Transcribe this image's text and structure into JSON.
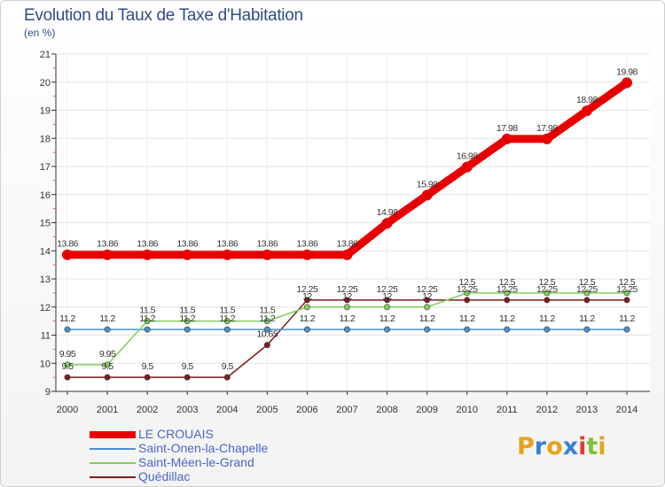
{
  "chart_data": {
    "type": "line",
    "title": "Evolution du Taux de Taxe d'Habitation",
    "subtitle": "(en %)",
    "x": [
      "2000",
      "2001",
      "2002",
      "2003",
      "2004",
      "2005",
      "2006",
      "2007",
      "2008",
      "2009",
      "2010",
      "2011",
      "2012",
      "2013",
      "2014"
    ],
    "ylim": [
      9,
      21
    ],
    "yticks": [
      "9",
      "10",
      "11",
      "12",
      "13",
      "14",
      "15",
      "16",
      "17",
      "18",
      "19",
      "20",
      "21"
    ],
    "series": [
      {
        "name": "LE CROUAIS",
        "color": "#e80000",
        "values": [
          13.86,
          13.86,
          13.86,
          13.86,
          13.86,
          13.86,
          13.86,
          13.86,
          14.98,
          15.98,
          16.98,
          17.98,
          17.98,
          18.98,
          19.98
        ],
        "labels": [
          "13.86",
          "13.86",
          "13.86",
          "13.86",
          "13.86",
          "13.86",
          "13.86",
          "13.86",
          "14.98",
          "15.98",
          "16.98",
          "17.98",
          "17.98",
          "18.98",
          "19.98"
        ]
      },
      {
        "name": "Saint-Onen-la-Chapelle",
        "color": "#4a8fd0",
        "values": [
          11.2,
          11.2,
          11.2,
          11.2,
          11.2,
          11.2,
          11.2,
          11.2,
          11.2,
          11.2,
          11.2,
          11.2,
          11.2,
          11.2,
          11.2
        ],
        "labels": [
          "11.2",
          "11.2",
          "11.2",
          "11.2",
          "11.2",
          "11.2",
          "11.2",
          "11.2",
          "11.2",
          "11.2",
          "11.2",
          "11.2",
          "11.2",
          "11.2",
          "11.2"
        ]
      },
      {
        "name": "Saint-Méen-le-Grand",
        "color": "#7fd05a",
        "values": [
          9.95,
          9.95,
          11.5,
          11.5,
          11.5,
          11.5,
          12,
          12,
          12,
          12,
          12.5,
          12.5,
          12.5,
          12.5,
          12.5
        ],
        "labels": [
          "9.95",
          "9.95",
          "11.5",
          "11.5",
          "11.5",
          "11.5",
          "12",
          "12",
          "12",
          "12",
          "12.5",
          "12.5",
          "12.5",
          "12.5",
          "12.5"
        ]
      },
      {
        "name": "Quédillac",
        "color": "#7a1e1e",
        "values": [
          9.5,
          9.5,
          9.5,
          9.5,
          9.5,
          10.65,
          12.25,
          12.25,
          12.25,
          12.25,
          12.25,
          12.25,
          12.25,
          12.25,
          12.25
        ],
        "labels": [
          "9.5",
          "9.5",
          "9.5",
          "9.5",
          "9.5",
          "10.65",
          "12.25",
          "12.25",
          "12.25",
          "12.25",
          "12.25",
          "12.25",
          "12.25",
          "12.25",
          "12.25"
        ]
      }
    ]
  },
  "brand": {
    "name": "Proxiti",
    "letters": [
      "P",
      "r",
      "o",
      "x",
      "i",
      "t",
      "i"
    ],
    "colors": [
      "#e6a21a",
      "#3a7fd6",
      "#e6a21a",
      "#3a7fd6",
      "#e23a3a",
      "#7ac23a",
      "#e6a21a"
    ]
  }
}
